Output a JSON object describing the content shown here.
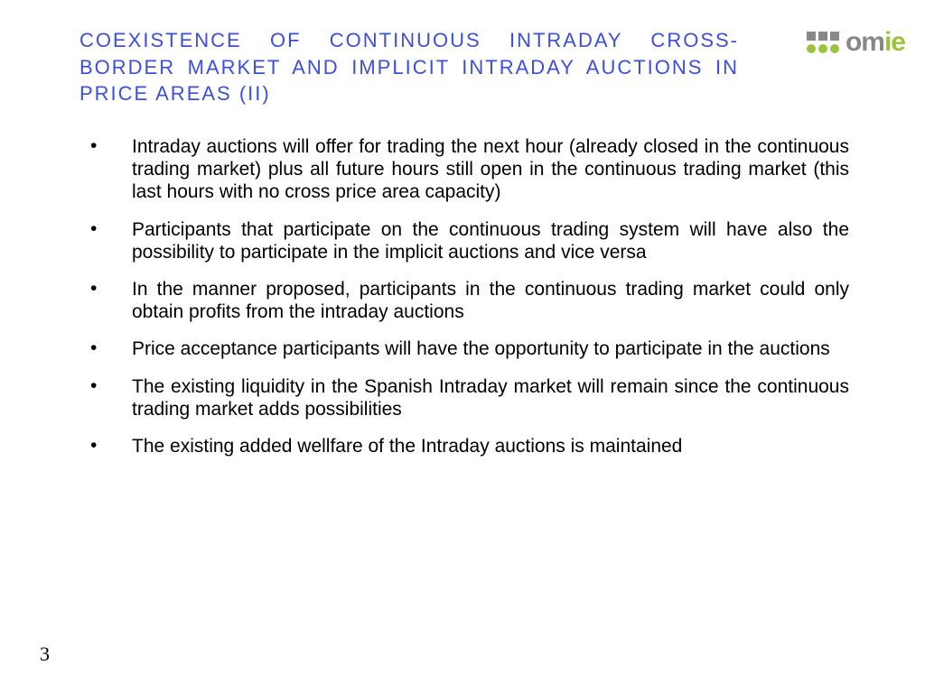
{
  "header": {
    "title": "COEXISTENCE OF CONTINUOUS INTRADAY CROSS-BORDER MARKET AND IMPLICIT INTRADAY AUCTIONS IN PRICE AREAS (II)",
    "title_color": "#3b4fd8",
    "title_fontsize": 22
  },
  "logo": {
    "text_gray": "om",
    "text_green": "ie",
    "gray_color": "#888888",
    "green_color": "#9ac53a"
  },
  "bullets": [
    "Intraday auctions will offer for trading the next hour (already closed in the continuous trading market) plus all future hours still open in the continuous trading market (this last hours with no cross price area capacity)",
    "Participants that participate on the continuous trading system will have also the possibility to participate in the implicit auctions and vice versa",
    "In the manner proposed, participants in the continuous trading market could only obtain profits from the intraday auctions",
    "Price acceptance participants will have the opportunity to participate in the auctions",
    "The existing liquidity in the Spanish Intraday market will remain since the  continuous trading market adds possibilities",
    "The existing added wellfare of the Intraday auctions is maintained"
  ],
  "body_fontsize": 21,
  "body_color": "#000000",
  "page_number": "3",
  "background_color": "#ffffff"
}
